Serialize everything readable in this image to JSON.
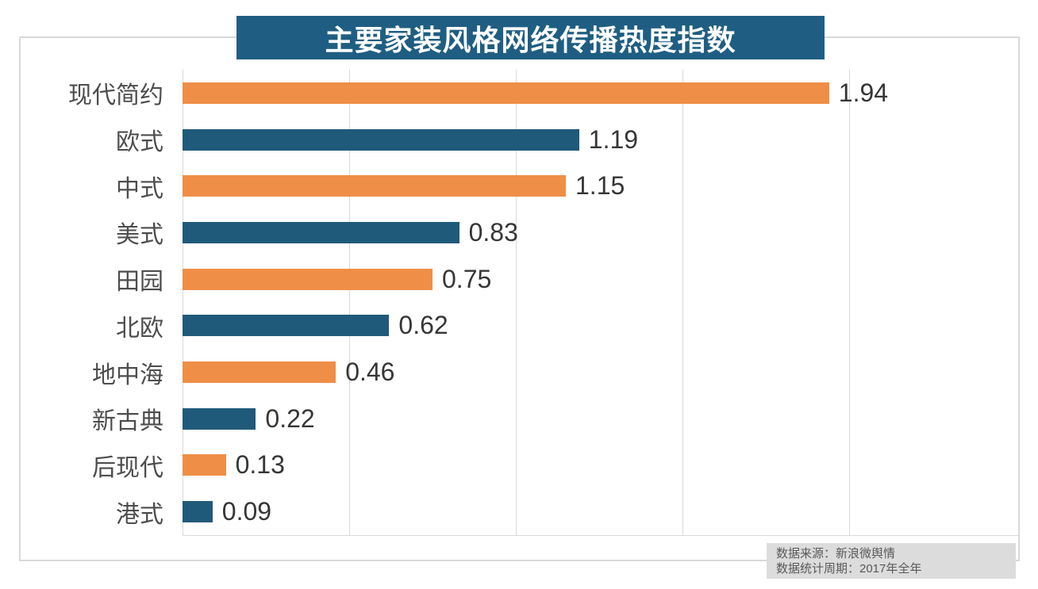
{
  "title": "主要家装风格网络传播热度指数",
  "footer": {
    "source": "数据来源：新浪微舆情",
    "period": "数据统计周期：2017年全年"
  },
  "colors": {
    "title_bg": "#1F5E82",
    "title_text": "#FFFFFF",
    "bar_orange": "#EF8E47",
    "bar_teal": "#1F5A7A",
    "gridline": "#D9D9D9",
    "frame_border": "#D9D9D9",
    "category_text": "#4D4D4D",
    "value_text": "#363636",
    "footer_bg": "#DCDCDC",
    "footer_text": "#595959"
  },
  "chart_data": {
    "type": "bar",
    "orientation": "horizontal",
    "title": "主要家装风格网络传播热度指数",
    "categories": [
      "现代简约",
      "欧式",
      "中式",
      "美式",
      "田园",
      "北欧",
      "地中海",
      "新古典",
      "后现代",
      "港式"
    ],
    "values": [
      1.94,
      1.19,
      1.15,
      0.83,
      0.75,
      0.62,
      0.46,
      0.22,
      0.13,
      0.09
    ],
    "value_labels": [
      "1.94",
      "1.19",
      "1.15",
      "0.83",
      "0.75",
      "0.62",
      "0.46",
      "0.22",
      "0.13",
      "0.09"
    ],
    "bar_colors": [
      "#EF8E47",
      "#1F5A7A",
      "#EF8E47",
      "#1F5A7A",
      "#EF8E47",
      "#1F5A7A",
      "#EF8E47",
      "#1F5A7A",
      "#EF8E47",
      "#1F5A7A"
    ],
    "xlabel": "",
    "ylabel": "",
    "xlim": [
      0,
      2.5
    ],
    "gridline_interval": 0.5,
    "grid": true,
    "legend": false,
    "data_labels": true,
    "source": "数据来源：新浪微舆情",
    "period": "数据统计周期：2017年全年"
  }
}
